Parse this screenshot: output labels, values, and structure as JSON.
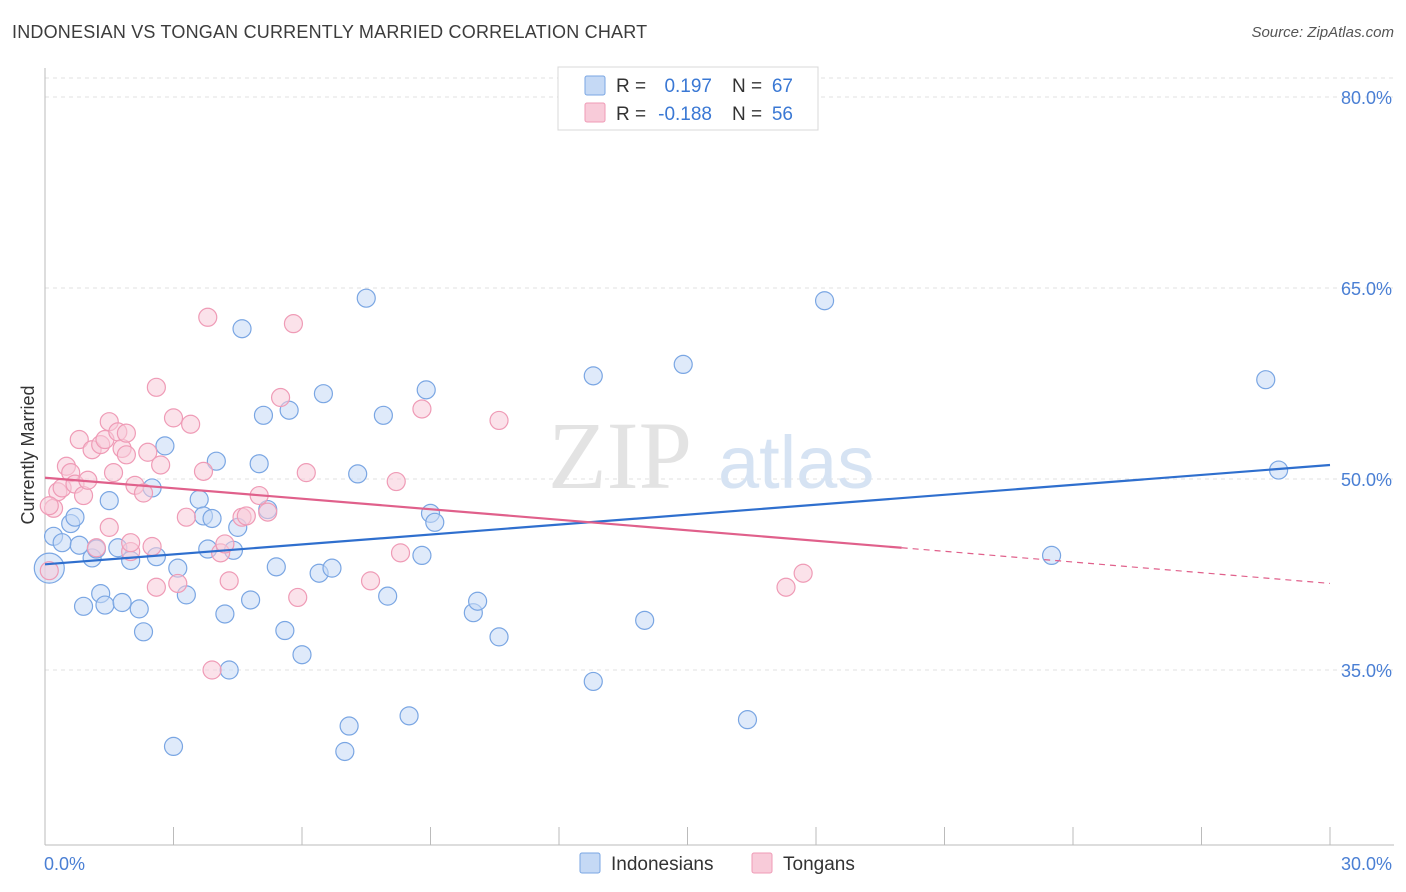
{
  "title": "INDONESIAN VS TONGAN CURRENTLY MARRIED CORRELATION CHART",
  "source": "Source: ZipAtlas.com",
  "watermark": {
    "zip": "ZIP",
    "atlas": "atlas"
  },
  "chart_data": {
    "type": "scatter",
    "title": "INDONESIAN VS TONGAN CURRENTLY MARRIED CORRELATION CHART",
    "ylabel": "Currently Married",
    "xlabel": "",
    "xlim": [
      0,
      30
    ],
    "ylim": [
      20,
      85
    ],
    "x_tick_labels": [
      "0.0%",
      "30.0%"
    ],
    "y_ticks": [
      35,
      50,
      65,
      80
    ],
    "y_tick_labels": [
      "35.0%",
      "50.0%",
      "65.0%",
      "80.0%"
    ],
    "grid": true,
    "legend_position": "top-center",
    "legend": [
      {
        "r_label": "R =",
        "r_value": "0.197",
        "n_label": "N =",
        "n_value": "67"
      },
      {
        "r_label": "R =",
        "r_value": "-0.188",
        "n_label": "N =",
        "n_value": "56"
      }
    ],
    "series": [
      {
        "name": "Indonesians",
        "color": "#7aa6e3",
        "fill": "#c5d9f5",
        "trend": {
          "x": [
            0,
            30
          ],
          "y": [
            43.3,
            51.1
          ],
          "color": "#2f6fce"
        },
        "points": [
          [
            0.1,
            43.0
          ],
          [
            0.2,
            45.5
          ],
          [
            0.4,
            45.0
          ],
          [
            0.6,
            46.5
          ],
          [
            0.7,
            47.0
          ],
          [
            0.8,
            44.8
          ],
          [
            0.9,
            40.0
          ],
          [
            1.1,
            43.8
          ],
          [
            1.2,
            44.5
          ],
          [
            1.3,
            41.0
          ],
          [
            1.4,
            40.1
          ],
          [
            1.5,
            48.3
          ],
          [
            1.7,
            44.6
          ],
          [
            1.8,
            40.3
          ],
          [
            2.0,
            43.6
          ],
          [
            2.2,
            39.8
          ],
          [
            2.3,
            38.0
          ],
          [
            2.5,
            49.3
          ],
          [
            2.6,
            43.9
          ],
          [
            2.8,
            52.6
          ],
          [
            3.0,
            29.0
          ],
          [
            3.1,
            43.0
          ],
          [
            3.3,
            40.9
          ],
          [
            3.6,
            48.4
          ],
          [
            3.7,
            47.1
          ],
          [
            3.8,
            44.5
          ],
          [
            3.9,
            46.9
          ],
          [
            4.0,
            51.4
          ],
          [
            4.2,
            39.4
          ],
          [
            4.3,
            35.0
          ],
          [
            4.4,
            44.4
          ],
          [
            4.5,
            46.2
          ],
          [
            4.6,
            61.8
          ],
          [
            4.8,
            40.5
          ],
          [
            5.0,
            51.2
          ],
          [
            5.1,
            55.0
          ],
          [
            5.2,
            47.6
          ],
          [
            5.4,
            43.1
          ],
          [
            5.6,
            38.1
          ],
          [
            5.7,
            55.4
          ],
          [
            6.0,
            36.2
          ],
          [
            6.4,
            42.6
          ],
          [
            6.5,
            56.7
          ],
          [
            6.7,
            43.0
          ],
          [
            7.0,
            28.6
          ],
          [
            7.1,
            30.6
          ],
          [
            7.3,
            50.4
          ],
          [
            7.5,
            64.2
          ],
          [
            7.9,
            55.0
          ],
          [
            8.0,
            40.8
          ],
          [
            8.5,
            31.4
          ],
          [
            8.8,
            44.0
          ],
          [
            8.9,
            57.0
          ],
          [
            9.0,
            47.3
          ],
          [
            9.1,
            46.6
          ],
          [
            10.0,
            39.5
          ],
          [
            10.1,
            40.4
          ],
          [
            10.6,
            37.6
          ],
          [
            12.8,
            34.1
          ],
          [
            12.8,
            58.1
          ],
          [
            14.0,
            38.9
          ],
          [
            14.9,
            59.0
          ],
          [
            16.4,
            31.1
          ],
          [
            18.2,
            64.0
          ],
          [
            23.5,
            44.0
          ],
          [
            28.5,
            57.8
          ],
          [
            28.8,
            50.7
          ]
        ]
      },
      {
        "name": "Tongans",
        "color": "#ef9bb6",
        "fill": "#f8cbd9",
        "trend": {
          "x": [
            0,
            20
          ],
          "y": [
            50.1,
            44.6
          ],
          "dash_to": [
            30,
            41.8
          ],
          "color": "#e0608b"
        },
        "points": [
          [
            0.1,
            42.8
          ],
          [
            0.2,
            47.7
          ],
          [
            0.3,
            49.0
          ],
          [
            0.4,
            49.3
          ],
          [
            0.5,
            51.0
          ],
          [
            0.6,
            50.5
          ],
          [
            0.7,
            49.6
          ],
          [
            0.8,
            53.1
          ],
          [
            0.9,
            48.7
          ],
          [
            1.0,
            49.9
          ],
          [
            1.1,
            52.3
          ],
          [
            1.2,
            44.6
          ],
          [
            1.3,
            52.7
          ],
          [
            1.4,
            53.1
          ],
          [
            1.5,
            54.5
          ],
          [
            1.5,
            46.2
          ],
          [
            1.6,
            50.5
          ],
          [
            1.7,
            53.7
          ],
          [
            1.8,
            52.4
          ],
          [
            1.9,
            53.6
          ],
          [
            1.9,
            51.9
          ],
          [
            2.0,
            44.3
          ],
          [
            2.0,
            45.0
          ],
          [
            2.1,
            49.5
          ],
          [
            2.3,
            48.9
          ],
          [
            2.4,
            52.1
          ],
          [
            2.5,
            44.7
          ],
          [
            2.6,
            41.5
          ],
          [
            2.6,
            57.2
          ],
          [
            2.7,
            51.1
          ],
          [
            3.0,
            54.8
          ],
          [
            3.1,
            41.8
          ],
          [
            3.3,
            47.0
          ],
          [
            3.4,
            54.3
          ],
          [
            3.7,
            50.6
          ],
          [
            3.8,
            62.7
          ],
          [
            3.9,
            35.0
          ],
          [
            4.1,
            44.2
          ],
          [
            4.2,
            44.9
          ],
          [
            4.3,
            42.0
          ],
          [
            4.6,
            47.0
          ],
          [
            4.7,
            47.1
          ],
          [
            5.0,
            48.7
          ],
          [
            5.2,
            47.4
          ],
          [
            5.5,
            56.4
          ],
          [
            5.8,
            62.2
          ],
          [
            5.9,
            40.7
          ],
          [
            6.1,
            50.5
          ],
          [
            7.6,
            42.0
          ],
          [
            8.2,
            49.8
          ],
          [
            8.3,
            44.2
          ],
          [
            8.8,
            55.5
          ],
          [
            10.6,
            54.6
          ],
          [
            17.3,
            41.5
          ],
          [
            17.7,
            42.6
          ],
          [
            0.1,
            47.9
          ]
        ]
      }
    ]
  }
}
